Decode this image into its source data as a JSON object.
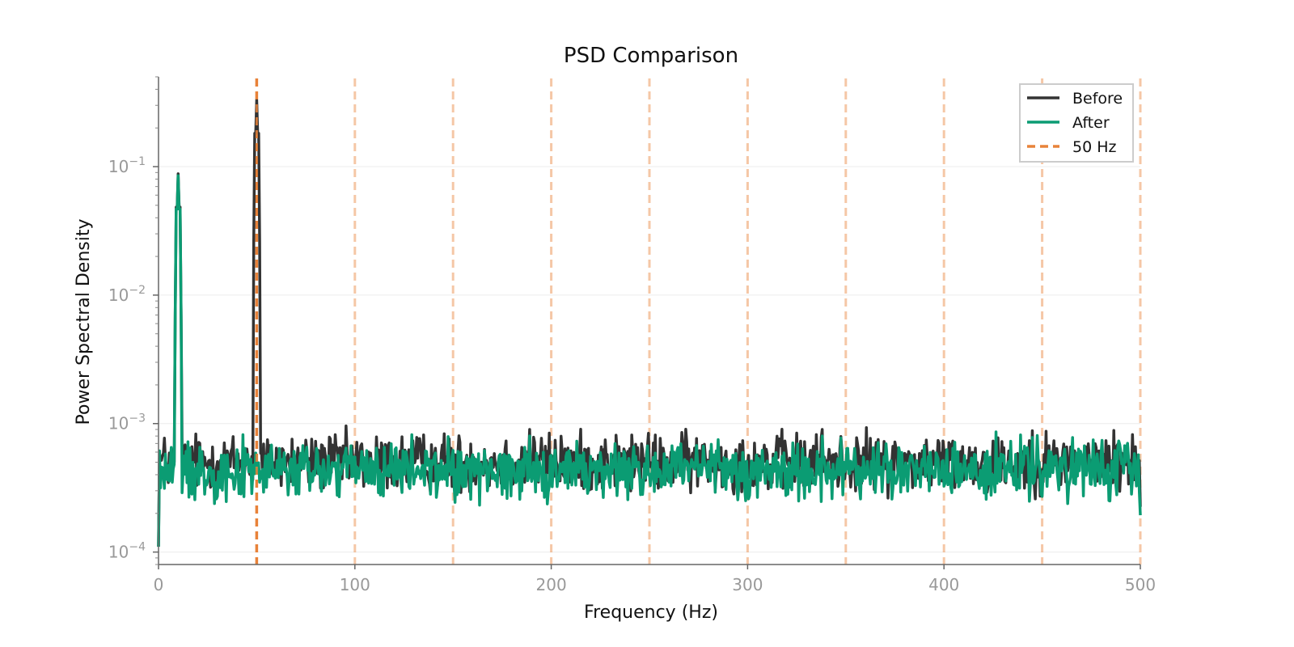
{
  "chart_data": {
    "type": "line",
    "title": "PSD Comparison",
    "xlabel": "Frequency (Hz)",
    "ylabel": "Power Spectral Density",
    "xlim": [
      0,
      500
    ],
    "ylim": [
      8e-05,
      0.5
    ],
    "yscale": "log",
    "x_ticks": [
      0,
      100,
      200,
      300,
      400,
      500
    ],
    "x_tick_labels": [
      "0",
      "100",
      "200",
      "300",
      "400",
      "500"
    ],
    "y_ticks": [
      0.0001,
      0.001,
      0.01,
      0.1
    ],
    "y_tick_labels": [
      {
        "base": "10",
        "exp": "−4"
      },
      {
        "base": "10",
        "exp": "−3"
      },
      {
        "base": "10",
        "exp": "−2"
      },
      {
        "base": "10",
        "exp": "−1"
      }
    ],
    "grid": "horizontal",
    "legend_position": "top-right",
    "series": [
      {
        "name": "Before",
        "color": "#333333",
        "noise_floor": 0.0005,
        "start_value": 0.00011,
        "peaks": [
          {
            "x": 10,
            "value": 0.088
          },
          {
            "x": 50,
            "value": 0.33
          },
          {
            "x": 189,
            "value": 0.0009
          },
          {
            "x": 338,
            "value": 0.0009
          },
          {
            "x": 445,
            "value": 0.00088
          }
        ]
      },
      {
        "name": "After",
        "color": "#0b9c73",
        "noise_floor": 0.00043,
        "start_value": 0.00011,
        "peaks": [
          {
            "x": 10,
            "value": 0.085
          },
          {
            "x": 189,
            "value": 0.0008
          },
          {
            "x": 285,
            "value": 0.00075
          },
          {
            "x": 338,
            "value": 0.0008
          },
          {
            "x": 445,
            "value": 0.00078
          }
        ]
      }
    ],
    "reference_lines": {
      "name": "50 Hz",
      "color": "#e8833a",
      "positions": [
        50,
        100,
        150,
        200,
        250,
        300,
        350,
        400,
        450,
        500
      ]
    }
  }
}
